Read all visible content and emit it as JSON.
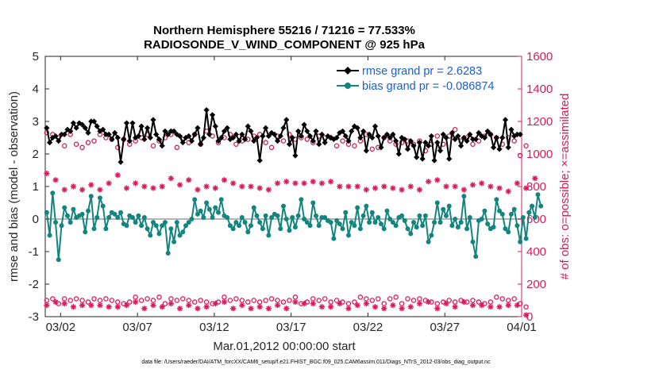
{
  "chart_data": {
    "type": "line",
    "title": "Northern Hemisphere 55216 / 71216 = 77.533%",
    "subtitle": "RADIOSONDE_V_WIND_COMPONENT @ 925 hPa",
    "xlabel": "Mar.01,2012 00:00:00 start",
    "ylabel": "rmse and bias (model - observation)",
    "ylabel_right": "# of obs: o=possible; ×=assimilated",
    "footer": "data file: /Users/raeder/DAI/ATM_forcXX/CAM6_setup/f.e21.FHIST_BGC.f09_025.CAM6assim.011/Diags_NTrS_2012-03/obs_diag_output.nc",
    "x_range": [
      0,
      31
    ],
    "xticks": [
      1,
      6,
      11,
      16,
      21,
      26,
      31
    ],
    "xtick_labels": [
      "03/02",
      "03/07",
      "03/12",
      "03/17",
      "03/22",
      "03/27",
      "04/01"
    ],
    "ylim": [
      -3,
      5
    ],
    "yticks": [
      -3,
      -2,
      -1,
      0,
      1,
      2,
      3,
      4,
      5
    ],
    "ytick_labels": [
      "-3",
      "-2",
      "-1",
      "0",
      "1",
      "2",
      "3",
      "4",
      "5"
    ],
    "ylim_right": [
      0,
      1600
    ],
    "yticks_right": [
      0,
      200,
      400,
      600,
      800,
      1000,
      1200,
      1400,
      1600
    ],
    "ytick_labels_right": [
      "0",
      "200",
      "400",
      "600",
      "800",
      "1000",
      "1200",
      "1400",
      "1600"
    ],
    "colors": {
      "rmse": "#000000",
      "bias": "#13857f",
      "obs": "#d41c5c",
      "legend_text": "#1a5fd6",
      "zero_line": "#b4b4b4"
    },
    "series": [
      {
        "name": "rmse",
        "label": "rmse grand pr = 2.6283",
        "values": [
          2.8,
          2.35,
          2.5,
          2.55,
          2.4,
          2.6,
          2.6,
          2.75,
          2.7,
          2.95,
          2.8,
          2.95,
          2.9,
          2.8,
          2.65,
          3.0,
          3.0,
          2.85,
          2.7,
          2.75,
          2.6,
          2.6,
          2.45,
          2.65,
          2.5,
          1.75,
          2.45,
          2.95,
          2.4,
          2.95,
          2.5,
          2.55,
          2.85,
          2.45,
          2.8,
          2.5,
          3.05,
          2.6,
          2.45,
          2.25,
          2.7,
          2.6,
          2.7,
          2.7,
          2.6,
          2.55,
          2.35,
          2.5,
          2.55,
          2.4,
          2.6,
          2.8,
          2.3,
          2.5,
          3.35,
          2.6,
          3.2,
          2.85,
          2.4,
          2.5,
          2.7,
          2.8,
          2.45,
          2.5,
          2.6,
          2.4,
          2.6,
          2.45,
          2.85,
          2.7,
          2.4,
          2.5,
          1.8,
          2.55,
          2.8,
          2.55,
          2.65,
          2.6,
          2.4,
          2.55,
          2.8,
          3.05,
          2.3,
          2.5,
          1.95,
          2.7,
          2.55,
          2.9,
          2.7,
          2.55,
          2.4,
          2.7,
          2.3,
          2.6,
          2.35,
          2.55,
          2.5,
          2.45,
          2.5,
          2.65,
          2.7,
          2.55,
          2.4,
          2.7,
          2.85,
          2.8,
          2.5,
          2.7,
          2.1,
          2.6,
          2.5,
          2.85,
          2.55,
          2.2,
          2.5,
          2.6,
          2.5,
          2.6,
          2.4,
          2.0,
          2.5,
          2.45,
          2.15,
          2.4,
          2.25,
          1.9,
          2.35,
          1.85,
          2.35,
          2.25,
          2.55,
          1.8,
          2.35,
          2.1,
          2.6,
          2.5,
          1.85,
          2.65,
          2.45,
          2.55,
          2.25,
          2.5,
          2.4,
          2.6,
          2.45,
          2.45,
          2.65,
          2.55,
          2.5,
          2.7,
          2.6,
          2.2,
          2.5,
          2.15,
          2.5,
          3.05,
          2.2,
          2.75,
          2.55,
          2.6,
          2.6
        ]
      },
      {
        "name": "bias",
        "label": "bias grand pr = -0.086874",
        "values": [
          0.2,
          -0.5,
          0.8,
          -0.1,
          -1.25,
          -0.2,
          0.35,
          0.1,
          -0.1,
          0.3,
          0.05,
          0.1,
          0.15,
          -0.4,
          0.25,
          0.7,
          -0.3,
          0.05,
          0.65,
          0.4,
          -0.3,
          0.05,
          0.2,
          0.15,
          0.05,
          0.2,
          -0.15,
          -0.2,
          0.1,
          0.05,
          -0.1,
          0.1,
          -0.2,
          0.05,
          -0.3,
          -0.5,
          -0.1,
          -0.2,
          -0.45,
          -0.2,
          -0.1,
          -1.05,
          -0.3,
          -0.7,
          -0.1,
          -0.5,
          -0.4,
          -0.2,
          -0.1,
          0.0,
          0.6,
          0.15,
          0.25,
          0.05,
          0.5,
          0.3,
          0.05,
          0.35,
          0.2,
          0.6,
          0.1,
          0.05,
          -0.2,
          -0.3,
          -0.1,
          -0.2,
          0.05,
          -0.1,
          -0.4,
          -0.2,
          0.35,
          0.1,
          -0.1,
          -0.3,
          0.1,
          -0.5,
          0.05,
          0.15,
          0.1,
          -0.3,
          0.4,
          0.0,
          -0.35,
          0.05,
          -0.25,
          0.1,
          0.6,
          0.0,
          -0.1,
          -0.2,
          0.5,
          0.1,
          -0.2,
          0.05,
          0.05,
          -0.05,
          -0.1,
          -0.6,
          -0.05,
          -0.15,
          -0.3,
          0.2,
          -0.5,
          -0.1,
          -0.2,
          0.35,
          -0.3,
          0.1,
          0.4,
          -0.1,
          0.2,
          -0.1,
          0.05,
          -0.15,
          -0.3,
          0.25,
          0.0,
          -0.1,
          -0.2,
          0.05,
          0.1,
          -0.05,
          -0.3,
          -0.45,
          -0.1,
          -0.25,
          0.1,
          -0.2,
          0.1,
          -0.7,
          -0.5,
          -0.1,
          0.5,
          -0.1,
          0.3,
          0.1,
          0.4,
          -0.2,
          0.0,
          -0.25,
          -0.1,
          0.7,
          -0.3,
          0.05,
          -0.7,
          -1.15,
          -0.05,
          0.0,
          0.25,
          -0.15,
          -0.3,
          -0.25,
          0.6,
          0.25,
          0.15,
          -0.3,
          -0.4,
          0.15,
          0.3,
          -0.2,
          -0.7,
          0.05,
          -0.6,
          0.2,
          0.4,
          0.05,
          0.75,
          0.4
        ]
      }
    ],
    "obs_possible": [
      1130,
      1080,
      1120,
      1140,
      1100,
      1110,
      1050,
      1080,
      1120,
      1090,
      1060,
      1100,
      1040,
      1110,
      1070,
      1130,
      1080,
      1110,
      1120,
      1040,
      1100,
      1060,
      1090,
      1120,
      1040,
      1100,
      1090,
      1110,
      1060,
      1140,
      1080,
      1050,
      1100,
      1070,
      1120,
      1090,
      1050,
      1110,
      1080,
      1060,
      1100,
      1080,
      1120,
      1090,
      1040,
      1100,
      1090,
      1110,
      1070,
      1110,
      1120,
      1100,
      1060,
      1080,
      1140,
      1090,
      1110,
      1080,
      1070,
      1050,
      1100,
      1080,
      1120,
      1090,
      1060,
      1100,
      1080,
      1110,
      1090,
      1060,
      1110,
      1080,
      1120,
      1100,
      1070,
      1050,
      1040,
      1100,
      1110,
      1090,
      1080,
      1100,
      1120,
      1070,
      1090,
      1050,
      1100,
      1130,
      1090,
      1100,
      1070,
      1060,
      1110,
      1080,
      1100,
      1040,
      1100,
      1110,
      1050,
      1070,
      1080,
      1090,
      1060,
      1100,
      1050,
      1110,
      1080,
      1140,
      1120,
      1080,
      1030,
      1100,
      1040,
      1070,
      1100,
      1090,
      1080,
      1040,
      1060,
      1100,
      1070,
      1090,
      1080,
      1110,
      1060,
      1050,
      1080,
      1100,
      1020,
      1090,
      1060,
      1070,
      1110,
      1100,
      1060,
      1090,
      1110,
      1080,
      1150,
      1040,
      1080,
      1070,
      1100,
      1130,
      1060,
      1120,
      1080,
      1060,
      1110,
      1050,
      1120,
      1080,
      1100,
      1040,
      1060,
      1050,
      1100,
      1020,
      1080,
      1050,
      990,
      1100,
      1050,
      1020
    ],
    "obs_assimilated": [
      880,
      820,
      870,
      840,
      850,
      810,
      780,
      860,
      790,
      800,
      840,
      770,
      780,
      840,
      790,
      810,
      800,
      830,
      780,
      840,
      860,
      820,
      790,
      800,
      870,
      800,
      850,
      790,
      810,
      830,
      820,
      780,
      840,
      800,
      770,
      820,
      790,
      840,
      810,
      800,
      780,
      820,
      850,
      800,
      830,
      810,
      760,
      800,
      840,
      810,
      820,
      780,
      830,
      790,
      800,
      810,
      830,
      790,
      780,
      800,
      840,
      810,
      790,
      820,
      780,
      830,
      800,
      790,
      760,
      800,
      810,
      860,
      790,
      820,
      790,
      780,
      880,
      800,
      820,
      790,
      810,
      830,
      800,
      780,
      820,
      790,
      800,
      820,
      810,
      790,
      830,
      800,
      780,
      820,
      790,
      800,
      830,
      810,
      790,
      800,
      780,
      840,
      800,
      820,
      800,
      800,
      830,
      790,
      780,
      820,
      800,
      790,
      840,
      780,
      800,
      820,
      810,
      790,
      770,
      830,
      780,
      830,
      810,
      800,
      790,
      840,
      780,
      820,
      810,
      830,
      800,
      790,
      840,
      780,
      820,
      800,
      780,
      820,
      800,
      790,
      830,
      780,
      800,
      820,
      810,
      790,
      780,
      820,
      790,
      830,
      800,
      780,
      820,
      790,
      850,
      800,
      770,
      790,
      810,
      820,
      770,
      830,
      790,
      800,
      820,
      850,
      780,
      800
    ],
    "obs_bottom_possible": [
      100,
      90,
      110,
      120,
      80,
      100,
      110,
      90,
      100,
      90,
      110,
      80,
      100,
      120,
      90,
      100,
      110,
      90,
      100,
      80,
      110,
      90,
      100,
      120,
      90,
      110,
      80,
      100,
      90,
      110,
      120,
      90,
      100,
      80,
      110,
      90,
      100,
      110,
      120,
      90,
      80,
      100,
      110,
      90,
      100,
      80,
      110,
      90,
      100,
      120,
      90,
      80,
      100,
      110,
      90,
      100,
      80,
      110,
      90,
      100,
      120,
      90,
      100,
      80,
      110,
      90,
      100,
      110,
      90,
      80,
      100,
      120,
      90,
      110,
      100,
      80,
      110,
      90,
      100,
      110,
      90,
      80,
      100,
      110,
      120,
      90,
      80,
      110,
      90,
      100,
      110,
      80,
      100,
      90,
      110,
      120,
      90,
      80,
      100,
      110,
      90,
      100,
      80,
      110,
      90,
      100,
      120,
      90,
      110,
      80,
      100,
      90,
      110,
      100,
      80,
      90,
      110,
      100,
      120,
      90,
      80,
      100,
      110,
      90,
      100,
      80,
      110,
      90,
      100,
      120,
      90,
      110,
      80,
      100,
      90,
      110,
      100,
      80,
      90,
      110,
      100,
      120,
      90,
      80,
      100,
      110,
      90,
      100,
      80,
      110,
      90,
      100,
      120,
      90,
      110,
      80,
      100,
      90,
      110,
      100,
      80,
      90,
      60
    ],
    "obs_bottom_assimilated": [
      70,
      60,
      80,
      90,
      50,
      70,
      80,
      60,
      70,
      60,
      80,
      50,
      70,
      90,
      60,
      70,
      80,
      60,
      70,
      50,
      80,
      60,
      70,
      90,
      60,
      80,
      50,
      70,
      60,
      80,
      90,
      60,
      70,
      50,
      80,
      60,
      70,
      80,
      90,
      60,
      50,
      70,
      80,
      60,
      70,
      50,
      80,
      60,
      70,
      90,
      60,
      50,
      70,
      80,
      60,
      70,
      50,
      80,
      60,
      70,
      90,
      60,
      70,
      50,
      80,
      60,
      70,
      80,
      60,
      50,
      70,
      90,
      60,
      80,
      70,
      50,
      80,
      60,
      70,
      80,
      60,
      50,
      70,
      80,
      90,
      60,
      50,
      80,
      60,
      70,
      80,
      50,
      70,
      60,
      80,
      90,
      60,
      50,
      70,
      80,
      60,
      70,
      50,
      80,
      60,
      70,
      90,
      60,
      80,
      50,
      70,
      60,
      80,
      70,
      50,
      60,
      80,
      70,
      90,
      60,
      50,
      70,
      80,
      60,
      70,
      50,
      80,
      60,
      70,
      90,
      60,
      80,
      50,
      70,
      60,
      80,
      70,
      50,
      60,
      80,
      70,
      90,
      60,
      50,
      70,
      80,
      60,
      70,
      50,
      80,
      60,
      70,
      90,
      60,
      80,
      50,
      70,
      60,
      80,
      70,
      50,
      60,
      10
    ]
  }
}
